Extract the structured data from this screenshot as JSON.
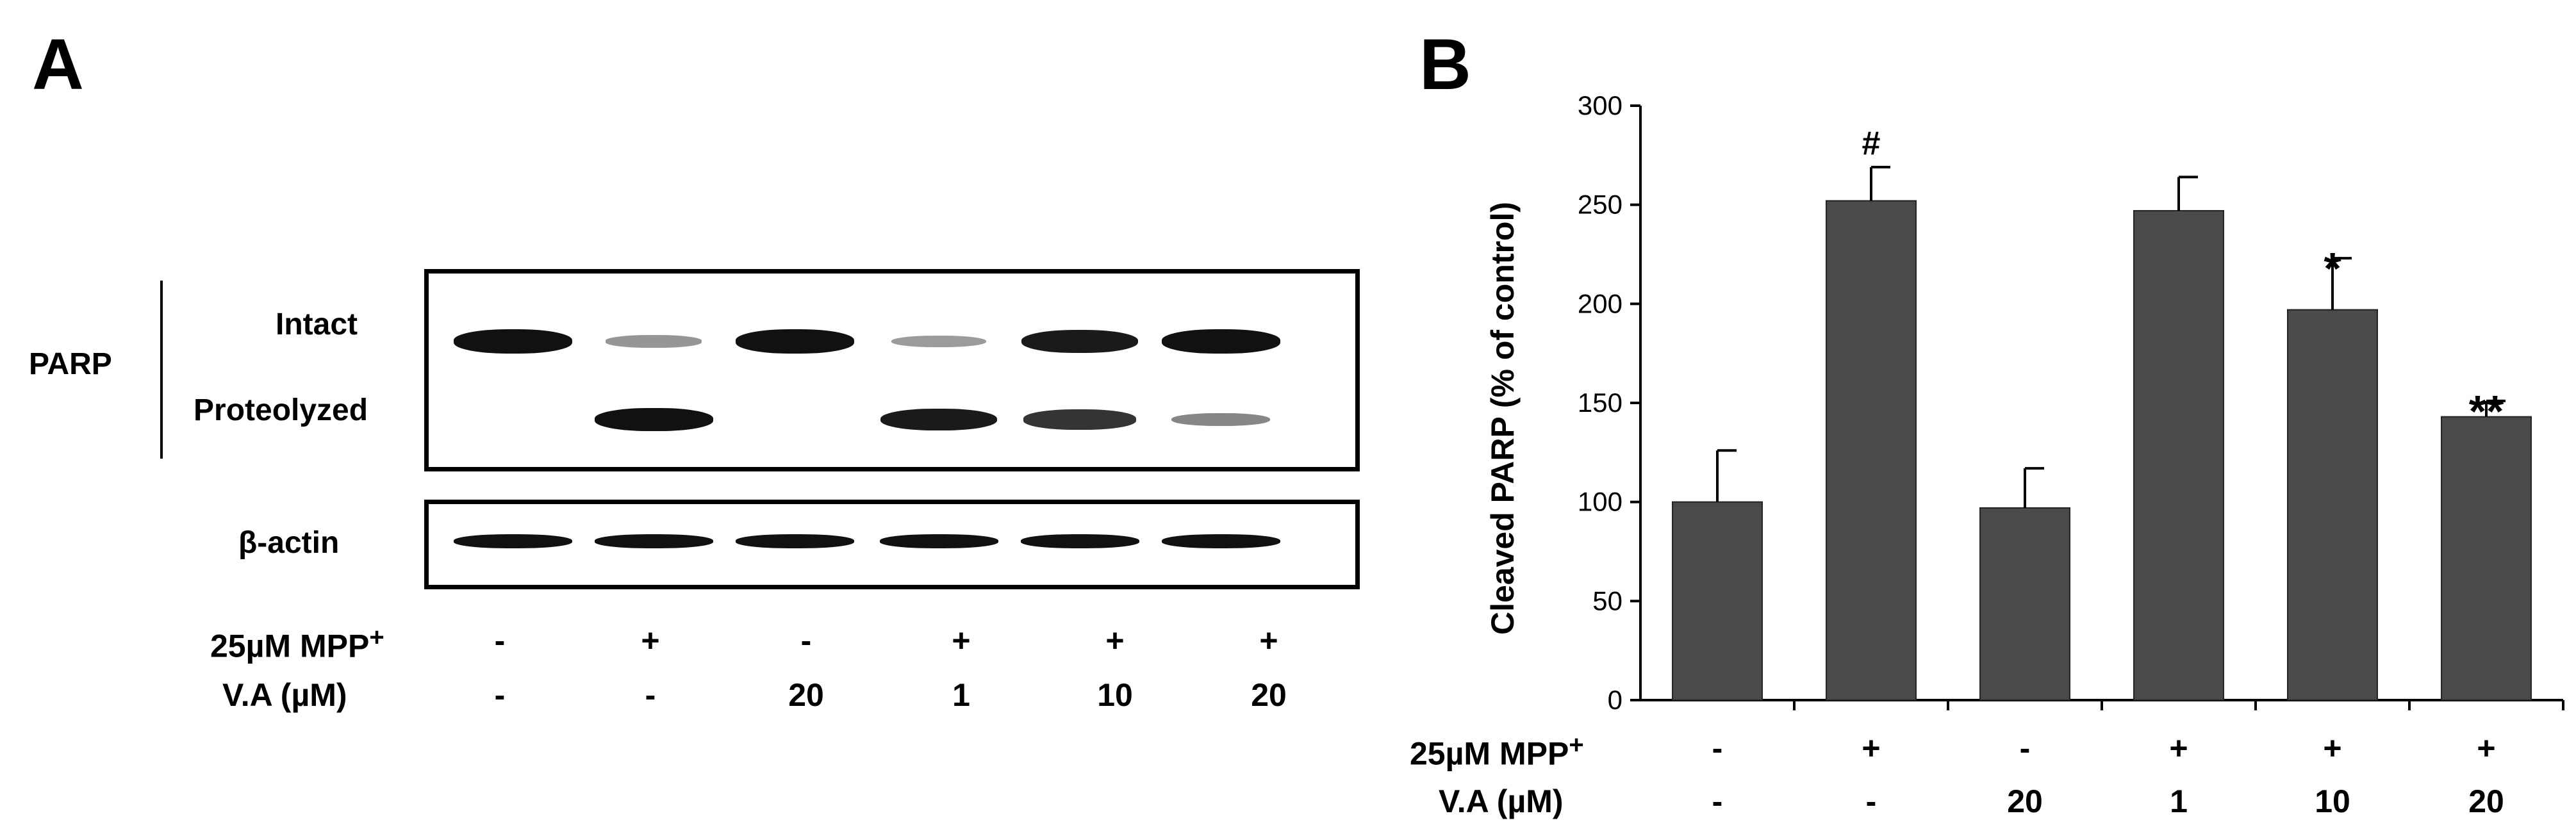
{
  "panels": {
    "a_label": "A",
    "b_label": "B"
  },
  "blot": {
    "group_label": "PARP",
    "row_labels": [
      "Intact",
      "Proteolyzed"
    ],
    "loading_label": "β-actin",
    "intact_band_intensity": [
      1.0,
      0.25,
      1.0,
      0.22,
      0.95,
      1.0
    ],
    "proteolyzed_band_intensity": [
      0,
      1.0,
      0,
      0.95,
      0.8,
      0.35
    ],
    "actin_band_intensity": [
      1,
      1,
      1,
      1,
      1,
      1
    ]
  },
  "conditions": {
    "row1_label": "25µM MPP",
    "row1_sup": "+",
    "row2_label": "V.A (µM)",
    "mpp": [
      "-",
      "+",
      "-",
      "+",
      "+",
      "+"
    ],
    "va": [
      "-",
      "-",
      "20",
      "1",
      "10",
      "20"
    ]
  },
  "chart_data": {
    "type": "bar",
    "ylabel": "Cleaved PARP (% of control)",
    "ylim": [
      0,
      300
    ],
    "yticks": [
      0,
      50,
      100,
      150,
      200,
      250,
      300
    ],
    "values": [
      100,
      252,
      97,
      247,
      197,
      143
    ],
    "errors": [
      26,
      17,
      20,
      17,
      26,
      8
    ],
    "annotations": [
      "",
      "#",
      "",
      "",
      "*",
      "**"
    ],
    "bar_color": "#4a4a4a"
  }
}
